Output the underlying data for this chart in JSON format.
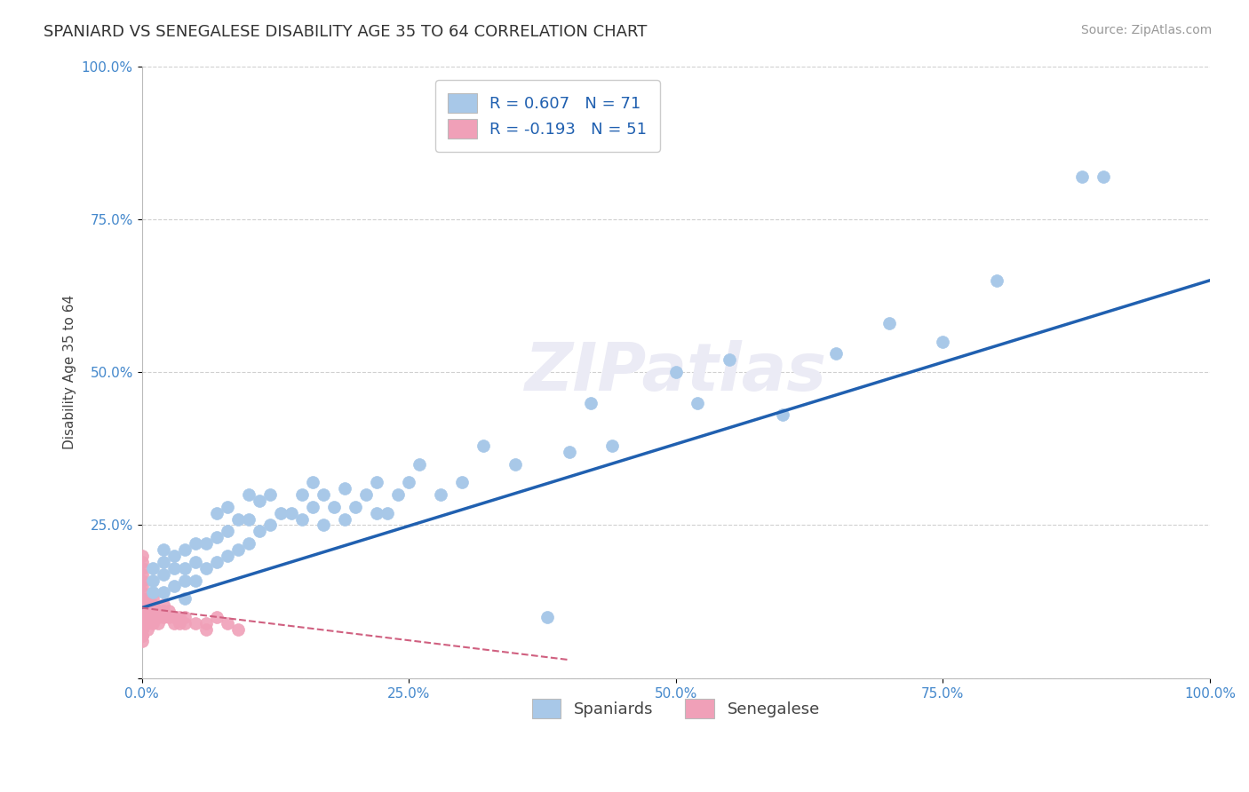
{
  "title": "SPANIARD VS SENEGALESE DISABILITY AGE 35 TO 64 CORRELATION CHART",
  "source": "Source: ZipAtlas.com",
  "xlabel": "",
  "ylabel": "Disability Age 35 to 64",
  "r_spaniard": 0.607,
  "n_spaniard": 71,
  "r_senegalese": -0.193,
  "n_senegalese": 51,
  "spaniard_color": "#a8c8e8",
  "senegalese_color": "#f0a0b8",
  "trendline_spaniard_color": "#2060b0",
  "trendline_senegalese_color": "#d06080",
  "background_color": "#ffffff",
  "grid_color": "#d0d0d0",
  "xlim": [
    0.0,
    1.0
  ],
  "ylim": [
    0.0,
    1.0
  ],
  "xticks": [
    0.0,
    0.25,
    0.5,
    0.75,
    1.0
  ],
  "yticks": [
    0.0,
    0.25,
    0.5,
    0.75,
    1.0
  ],
  "xticklabels": [
    "0.0%",
    "25.0%",
    "50.0%",
    "75.0%",
    "100.0%"
  ],
  "yticklabels": [
    "",
    "25.0%",
    "50.0%",
    "75.0%",
    "100.0%"
  ],
  "spaniard_x": [
    0.01,
    0.01,
    0.01,
    0.02,
    0.02,
    0.02,
    0.02,
    0.03,
    0.03,
    0.03,
    0.04,
    0.04,
    0.04,
    0.04,
    0.05,
    0.05,
    0.05,
    0.06,
    0.06,
    0.07,
    0.07,
    0.07,
    0.08,
    0.08,
    0.08,
    0.09,
    0.09,
    0.1,
    0.1,
    0.1,
    0.11,
    0.11,
    0.12,
    0.12,
    0.13,
    0.14,
    0.15,
    0.15,
    0.16,
    0.16,
    0.17,
    0.17,
    0.18,
    0.19,
    0.19,
    0.2,
    0.21,
    0.22,
    0.22,
    0.23,
    0.24,
    0.25,
    0.26,
    0.28,
    0.3,
    0.32,
    0.35,
    0.38,
    0.4,
    0.42,
    0.44,
    0.5,
    0.52,
    0.55,
    0.6,
    0.65,
    0.7,
    0.75,
    0.8,
    0.88,
    0.9
  ],
  "spaniard_y": [
    0.14,
    0.16,
    0.18,
    0.14,
    0.17,
    0.19,
    0.21,
    0.15,
    0.18,
    0.2,
    0.13,
    0.16,
    0.18,
    0.21,
    0.16,
    0.19,
    0.22,
    0.18,
    0.22,
    0.19,
    0.23,
    0.27,
    0.2,
    0.24,
    0.28,
    0.21,
    0.26,
    0.22,
    0.26,
    0.3,
    0.24,
    0.29,
    0.25,
    0.3,
    0.27,
    0.27,
    0.26,
    0.3,
    0.28,
    0.32,
    0.25,
    0.3,
    0.28,
    0.26,
    0.31,
    0.28,
    0.3,
    0.27,
    0.32,
    0.27,
    0.3,
    0.32,
    0.35,
    0.3,
    0.32,
    0.38,
    0.35,
    0.1,
    0.37,
    0.45,
    0.38,
    0.5,
    0.45,
    0.52,
    0.43,
    0.53,
    0.58,
    0.55,
    0.65,
    0.82,
    0.82
  ],
  "senegalese_x": [
    0.0,
    0.0,
    0.0,
    0.0,
    0.0,
    0.0,
    0.0,
    0.0,
    0.0,
    0.0,
    0.0,
    0.0,
    0.0,
    0.0,
    0.0,
    0.0,
    0.0,
    0.0,
    0.0,
    0.0,
    0.005,
    0.005,
    0.005,
    0.005,
    0.005,
    0.005,
    0.01,
    0.01,
    0.01,
    0.01,
    0.01,
    0.015,
    0.015,
    0.015,
    0.02,
    0.02,
    0.02,
    0.025,
    0.025,
    0.03,
    0.03,
    0.035,
    0.035,
    0.04,
    0.04,
    0.05,
    0.06,
    0.06,
    0.07,
    0.08,
    0.09
  ],
  "senegalese_y": [
    0.06,
    0.07,
    0.08,
    0.09,
    0.1,
    0.11,
    0.12,
    0.13,
    0.14,
    0.15,
    0.16,
    0.17,
    0.18,
    0.19,
    0.2,
    0.1,
    0.11,
    0.08,
    0.09,
    0.07,
    0.1,
    0.11,
    0.12,
    0.13,
    0.09,
    0.08,
    0.11,
    0.12,
    0.13,
    0.1,
    0.09,
    0.1,
    0.11,
    0.09,
    0.11,
    0.1,
    0.12,
    0.1,
    0.11,
    0.1,
    0.09,
    0.09,
    0.1,
    0.09,
    0.1,
    0.09,
    0.08,
    0.09,
    0.1,
    0.09,
    0.08
  ],
  "trend_sp_x0": 0.0,
  "trend_sp_y0": 0.115,
  "trend_sp_x1": 1.0,
  "trend_sp_y1": 0.65,
  "trend_sn_x0": 0.0,
  "trend_sn_y0": 0.115,
  "trend_sn_x1": 0.4,
  "trend_sn_y1": 0.03,
  "title_fontsize": 13,
  "axis_label_fontsize": 11,
  "tick_fontsize": 11,
  "legend_fontsize": 13,
  "source_fontsize": 10
}
